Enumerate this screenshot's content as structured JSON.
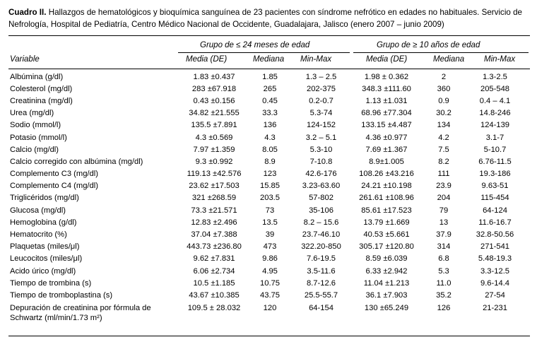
{
  "caption": {
    "label": "Cuadro II.",
    "text": " Hallazgos de hematológicos y bioquímica sanguínea de 23 pacientes con síndrome nefrótico en edades no habituales. Servicio de Nefrología, Hospital de Pediatría, Centro Médico Nacional de Occidente, Guadalajara, Jalisco (enero 2007 – junio 2009)"
  },
  "groups": {
    "g1": "Grupo de ≤ 24 meses de edad",
    "g2": "Grupo de ≥ 10 años de edad"
  },
  "headers": {
    "variable": "Variable",
    "mean1": "Media (DE)",
    "median1": "Mediana",
    "minmax1": "Min-Max",
    "mean2": "Media (DE)",
    "median2": "Mediana",
    "minmax2": "Min-Max"
  },
  "rows": [
    {
      "variable": "Albúmina (g/dl)",
      "mean1": "1.83 ±0.437",
      "median1": "1.85",
      "minmax1": "1.3 – 2.5",
      "mean2": "1.98 ± 0.362",
      "median2": "2",
      "minmax2": "1.3-2.5"
    },
    {
      "variable": "Colesterol (mg/dl)",
      "mean1": "283 ±67.918",
      "median1": "265",
      "minmax1": "202-375",
      "mean2": "348.3 ±111.60",
      "median2": "360",
      "minmax2": "205-548"
    },
    {
      "variable": "Creatinina (mg/dl)",
      "mean1": "0.43 ±0.156",
      "median1": "0.45",
      "minmax1": "0.2-0.7",
      "mean2": "1.13 ±1.031",
      "median2": "0.9",
      "minmax2": "0.4 – 4.1"
    },
    {
      "variable": "Urea (mg/dl)",
      "mean1": "34.82 ±21.555",
      "median1": "33.3",
      "minmax1": "5.3-74",
      "mean2": "68.96 ±77.304",
      "median2": "30.2",
      "minmax2": "14.8-246"
    },
    {
      "variable": "Sodio (mmol/l)",
      "mean1": "135.5 ±7.891",
      "median1": "136",
      "minmax1": "124-152",
      "mean2": "133.15 ±4.487",
      "median2": "134",
      "minmax2": "124-139"
    },
    {
      "variable": "Potasio (mmol/l)",
      "mean1": "4.3 ±0.569",
      "median1": "4.3",
      "minmax1": "3.2 – 5.1",
      "mean2": "4.36 ±0.977",
      "median2": "4.2",
      "minmax2": "3.1-7"
    },
    {
      "variable": "Calcio (mg/dl)",
      "mean1": "7.97 ±1.359",
      "median1": "8.05",
      "minmax1": "5.3-10",
      "mean2": "7.69 ±1.367",
      "median2": "7.5",
      "minmax2": "5-10.7"
    },
    {
      "variable": "Calcio corregido con albúmina (mg/dl)",
      "mean1": "9.3 ±0.992",
      "median1": "8.9",
      "minmax1": "7-10.8",
      "mean2": "8.9±1.005",
      "median2": "8.2",
      "minmax2": "6.76-11.5"
    },
    {
      "variable": "Complemento C3 (mg/dl)",
      "mean1": "119.13 ±42.576",
      "median1": "123",
      "minmax1": "42.6-176",
      "mean2": "108.26 ±43.216",
      "median2": "111",
      "minmax2": "19.3-186"
    },
    {
      "variable": "Complemento C4 (mg/dl)",
      "mean1": "23.62 ±17.503",
      "median1": "15.85",
      "minmax1": "3.23-63.60",
      "mean2": "24.21 ±10.198",
      "median2": "23.9",
      "minmax2": "9.63-51"
    },
    {
      "variable": "Triglicéridos (mg/dl)",
      "mean1": "321 ±268.59",
      "median1": "203.5",
      "minmax1": "57-802",
      "mean2": "261.61 ±108.96",
      "median2": "204",
      "minmax2": "115-454"
    },
    {
      "variable": "Glucosa (mg/dl)",
      "mean1": "73.3 ±21.571",
      "median1": "73",
      "minmax1": "35-106",
      "mean2": "85.61 ±17.523",
      "median2": "79",
      "minmax2": "64-124"
    },
    {
      "variable": "Hemoglobina (g/dl)",
      "mean1": "12.83 ±2.496",
      "median1": "13.5",
      "minmax1": "8.2 – 15.6",
      "mean2": "13.79 ±1.669",
      "median2": "13",
      "minmax2": "11.6-16.7"
    },
    {
      "variable": "Hematocrito (%)",
      "mean1": "37.04 ±7.388",
      "median1": "39",
      "minmax1": "23.7-46.10",
      "mean2": "40.53 ±5.661",
      "median2": "37.9",
      "minmax2": "32.8-50.56"
    },
    {
      "variable": "Plaquetas (miles/μl)",
      "mean1": "443.73 ±236.80",
      "median1": "473",
      "minmax1": "322.20-850",
      "mean2": "305.17 ±120.80",
      "median2": "314",
      "minmax2": "271-541"
    },
    {
      "variable": "Leucocitos (miles/μl)",
      "mean1": "9.62 ±7.831",
      "median1": "9.86",
      "minmax1": "7.6-19.5",
      "mean2": "8.59 ±6.039",
      "median2": "6.8",
      "minmax2": "5.48-19.3"
    },
    {
      "variable": "Acido úrico (mg/dl)",
      "mean1": "6.06 ±2.734",
      "median1": "4.95",
      "minmax1": "3.5-11.6",
      "mean2": "6.33 ±2.942",
      "median2": "5.3",
      "minmax2": "3.3-12.5"
    },
    {
      "variable": "Tiempo de trombina (s)",
      "mean1": "10.5 ±1.185",
      "median1": "10.75",
      "minmax1": "8.7-12.6",
      "mean2": "11.04 ±1.213",
      "median2": "11.0",
      "minmax2": "9.6-14.4"
    },
    {
      "variable": "Tiempo de tromboplastina (s)",
      "mean1": "43.67 ±10.385",
      "median1": "43.75",
      "minmax1": "25.5-55.7",
      "mean2": "36.1 ±7.903",
      "median2": "35.2",
      "minmax2": "27-54"
    },
    {
      "variable": "Depuración de creatinina por fórmula de Schwartz (ml/min/1.73 m²)",
      "mean1": "109.5 ± 28.032",
      "median1": "120",
      "minmax1": "64-154",
      "mean2": "130 ±65.249",
      "median2": "126",
      "minmax2": "21-231"
    }
  ]
}
